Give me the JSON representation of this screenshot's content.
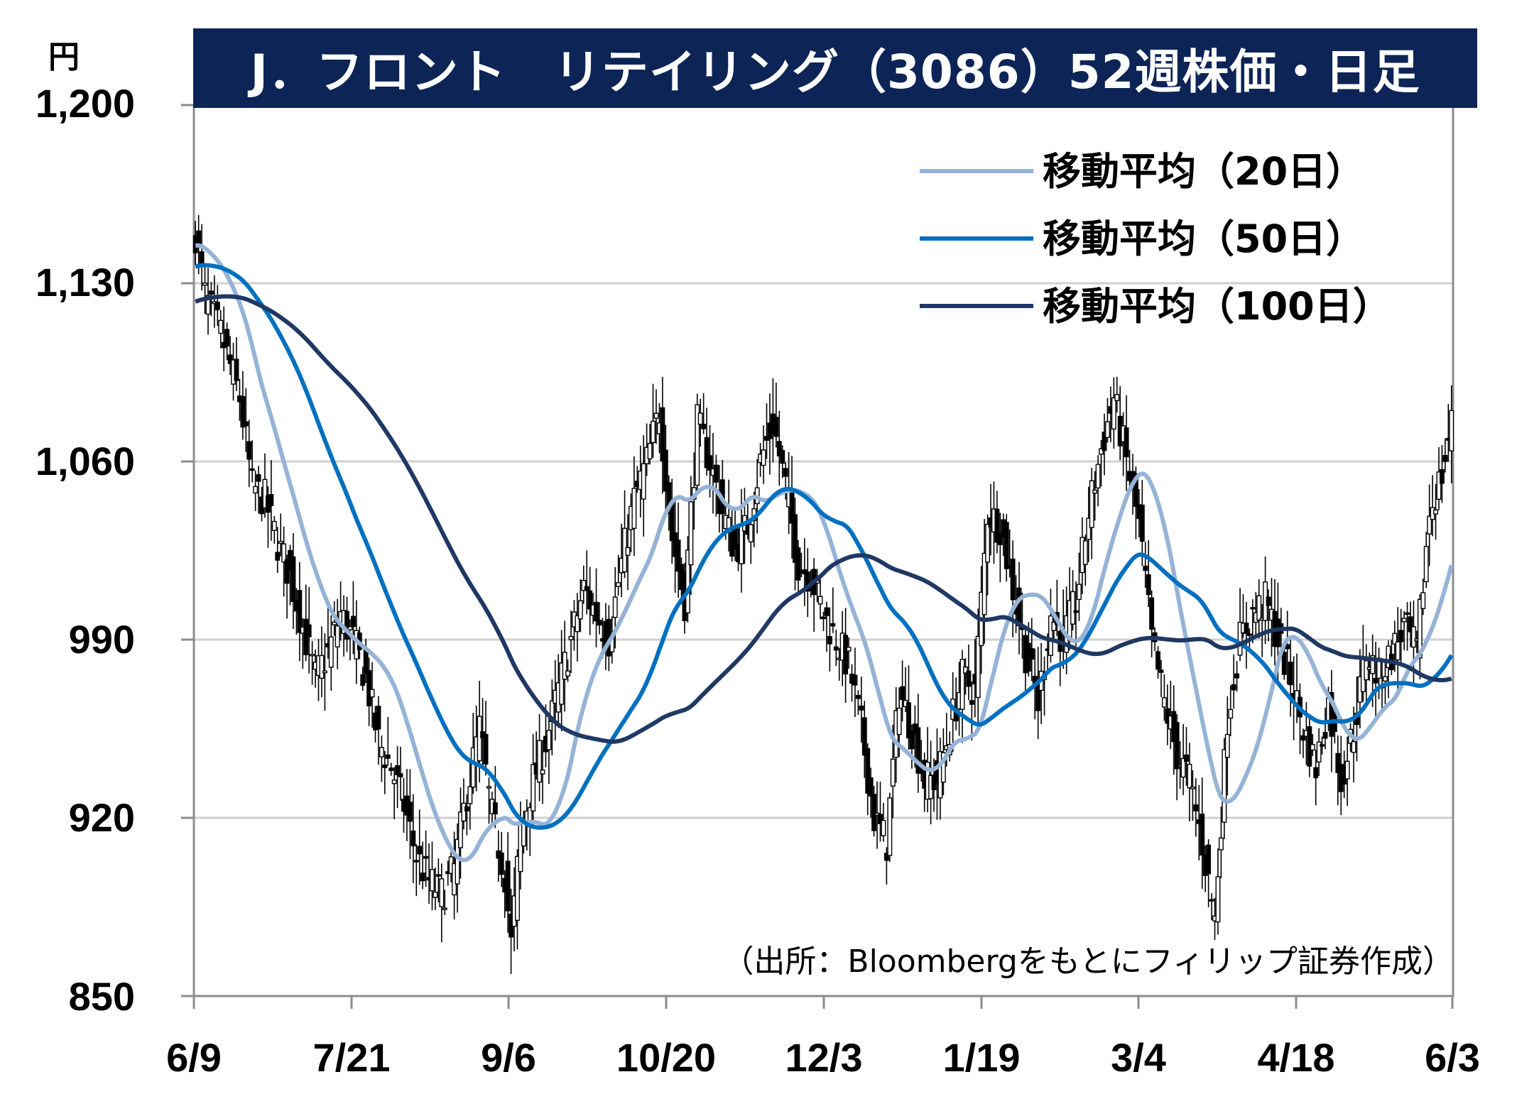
{
  "chart_data": {
    "type": "candlestick",
    "title": "J．フロント　リテイリング（3086）52週株価・日足",
    "unit_label": "円",
    "ylim": [
      850,
      1200
    ],
    "y_ticks": [
      "1,200",
      "1,130",
      "1,060",
      "990",
      "920",
      "850"
    ],
    "y_tick_values": [
      1200,
      1130,
      1060,
      990,
      920,
      850
    ],
    "x_tick_labels": [
      "6/9",
      "7/21",
      "9/6",
      "10/20",
      "12/3",
      "1/19",
      "3/4",
      "4/18",
      "6/3"
    ],
    "grid": true,
    "legend_position": "top-right",
    "source": "（出所：Bloombergをもとにフィリップ証券作成）",
    "colors": {
      "title_bg": "#0d2456",
      "ma20": "#95b3d7",
      "ma50": "#0070c0",
      "ma100": "#1f3864",
      "candle": "#000000",
      "grid": "#d0d0d0"
    },
    "close_anchors": [
      [
        0,
        1150
      ],
      [
        3,
        1125
      ],
      [
        8,
        1110
      ],
      [
        14,
        1085
      ],
      [
        18,
        1050
      ],
      [
        22,
        1045
      ],
      [
        26,
        1028
      ],
      [
        30,
        1015
      ],
      [
        34,
        995
      ],
      [
        38,
        975
      ],
      [
        42,
        985
      ],
      [
        46,
        1000
      ],
      [
        50,
        990
      ],
      [
        54,
        975
      ],
      [
        58,
        950
      ],
      [
        62,
        940
      ],
      [
        66,
        925
      ],
      [
        70,
        905
      ],
      [
        74,
        895
      ],
      [
        78,
        890
      ],
      [
        82,
        900
      ],
      [
        86,
        930
      ],
      [
        90,
        955
      ],
      [
        94,
        920
      ],
      [
        98,
        898
      ],
      [
        100,
        870
      ],
      [
        103,
        915
      ],
      [
        107,
        935
      ],
      [
        111,
        950
      ],
      [
        115,
        970
      ],
      [
        119,
        990
      ],
      [
        123,
        1010
      ],
      [
        127,
        1000
      ],
      [
        131,
        990
      ],
      [
        135,
        1020
      ],
      [
        139,
        1045
      ],
      [
        143,
        1060
      ],
      [
        147,
        1080
      ],
      [
        151,
        1030
      ],
      [
        155,
        1005
      ],
      [
        159,
        1075
      ],
      [
        163,
        1060
      ],
      [
        167,
        1040
      ],
      [
        171,
        1025
      ],
      [
        175,
        1035
      ],
      [
        179,
        1060
      ],
      [
        183,
        1075
      ],
      [
        187,
        1050
      ],
      [
        191,
        1020
      ],
      [
        195,
        1015
      ],
      [
        199,
        1000
      ],
      [
        203,
        990
      ],
      [
        207,
        980
      ],
      [
        211,
        955
      ],
      [
        215,
        920
      ],
      [
        219,
        910
      ],
      [
        223,
        970
      ],
      [
        227,
        955
      ],
      [
        231,
        935
      ],
      [
        235,
        935
      ],
      [
        239,
        955
      ],
      [
        243,
        975
      ],
      [
        247,
        970
      ],
      [
        251,
        1040
      ],
      [
        255,
        1035
      ],
      [
        259,
        1010
      ],
      [
        263,
        985
      ],
      [
        267,
        965
      ],
      [
        271,
        1000
      ],
      [
        275,
        990
      ],
      [
        279,
        1005
      ],
      [
        283,
        1040
      ],
      [
        287,
        1065
      ],
      [
        291,
        1085
      ],
      [
        295,
        1060
      ],
      [
        299,
        1035
      ],
      [
        303,
        990
      ],
      [
        307,
        965
      ],
      [
        311,
        945
      ],
      [
        315,
        935
      ],
      [
        319,
        910
      ],
      [
        323,
        880
      ],
      [
        327,
        960
      ],
      [
        331,
        990
      ],
      [
        335,
        1000
      ],
      [
        339,
        1005
      ],
      [
        343,
        990
      ],
      [
        347,
        975
      ],
      [
        351,
        955
      ],
      [
        355,
        940
      ],
      [
        359,
        965
      ],
      [
        363,
        935
      ],
      [
        367,
        955
      ],
      [
        371,
        985
      ],
      [
        375,
        975
      ],
      [
        379,
        985
      ],
      [
        383,
        995
      ],
      [
        387,
        985
      ],
      [
        391,
        1040
      ],
      [
        395,
        1055
      ],
      [
        398,
        1075
      ]
    ],
    "series": [
      {
        "name": "移動平均（20日）",
        "window": 20,
        "color": "#95b3d7"
      },
      {
        "name": "移動平均（50日）",
        "window": 50,
        "color": "#0070c0"
      },
      {
        "name": "移動平均（100日）",
        "window": 100,
        "color": "#1f3864"
      }
    ]
  }
}
